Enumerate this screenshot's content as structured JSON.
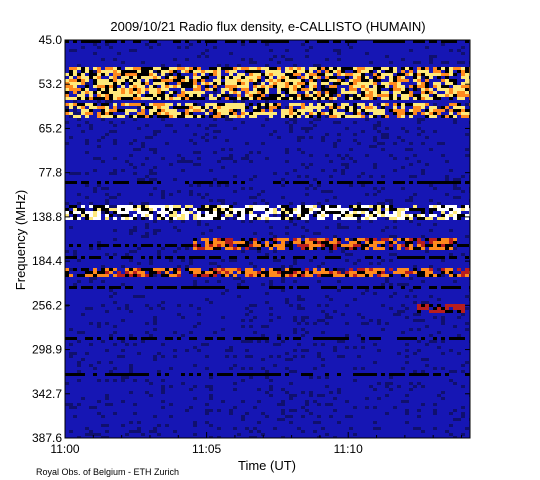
{
  "chart_data": {
    "type": "heatmap",
    "title": "2009/10/21  Radio flux density, e-CALLISTO (HUMAIN)",
    "xlabel": "Time (UT)",
    "ylabel": "Frequency (MHz)",
    "xticks": [
      {
        "value": 0,
        "label": "11:00"
      },
      {
        "value": 5,
        "label": "11:05"
      },
      {
        "value": 10,
        "label": "11:10"
      }
    ],
    "xlim_minutes_after_1100": [
      0,
      14.3
    ],
    "yticks": [
      "45.0",
      "53.2",
      "65.2",
      "77.8",
      "138.8",
      "184.4",
      "256.2",
      "298.9",
      "342.7",
      "387.6"
    ],
    "ylim_mhz": [
      45.0,
      387.6
    ],
    "colormap": [
      "#000000",
      "#10106e",
      "#1a1ad2",
      "#b81e1e",
      "#ff8a1e",
      "#ffe97a",
      "#ffffff"
    ],
    "background_color": "#1616b4",
    "bright_bands": [
      {
        "freq_range_mhz": [
          50,
          57
        ],
        "intensity": "high",
        "color": "orange-red"
      },
      {
        "freq_range_mhz": [
          58,
          62
        ],
        "intensity": "high",
        "color": "red"
      },
      {
        "freq_range_mhz": [
          120,
          140
        ],
        "intensity": "very high",
        "color": "white-yellow"
      },
      {
        "freq_range_mhz": [
          160,
          170
        ],
        "intensity": "medium",
        "color": "red",
        "time_range_minutes": [
          4.4,
          13.8
        ]
      },
      {
        "freq_range_mhz": [
          195,
          205
        ],
        "intensity": "medium",
        "color": "red"
      },
      {
        "freq_range_mhz": [
          255,
          262
        ],
        "intensity": "low",
        "color": "red",
        "time_range_minutes": [
          12.4,
          14
        ]
      }
    ],
    "grid": false,
    "legend": "none"
  },
  "footer": {
    "credit": "Royal Obs. of Belgium - ETH Zurich"
  }
}
